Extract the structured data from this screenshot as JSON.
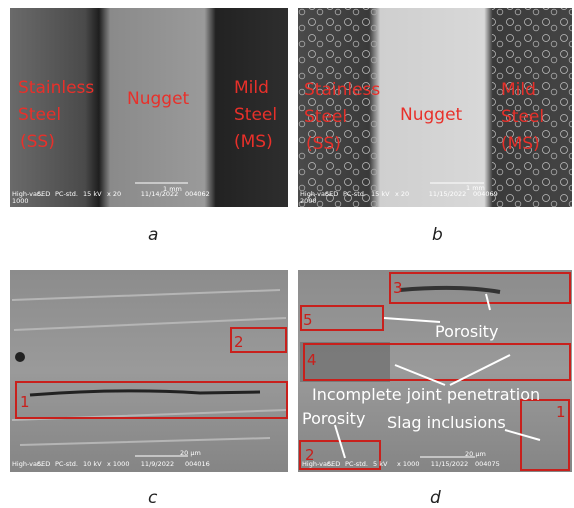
{
  "panels": [
    {
      "caption": "a",
      "labels": [
        "Stainless",
        "Steel",
        "(SS)",
        "Nugget",
        "Mild",
        "Steel",
        "(MS)"
      ],
      "footer": [
        "High-vac.",
        "SED",
        "PC-std.",
        "15 kV",
        "x 20",
        "11/14/2022",
        "004062",
        "1000"
      ],
      "scale": "1 mm"
    },
    {
      "caption": "b",
      "labels": [
        "Stainless",
        "Steel",
        "(SS)",
        "Nugget",
        "Mild",
        "Steel",
        "(MS)"
      ],
      "footer": [
        "High-vac.",
        "SED",
        "PC-std.",
        "15 kV",
        "x 20",
        "11/15/2022",
        "004069",
        "2000"
      ],
      "scale": "1 mm"
    },
    {
      "caption": "c",
      "labels": [
        "1",
        "2"
      ],
      "footer": [
        "High-vac.",
        "SED",
        "PC-std.",
        "10 kV",
        "x 1000",
        "11/9/2022",
        "004016"
      ],
      "scale": "20 µm"
    },
    {
      "caption": "d",
      "labels": [
        "3",
        "5",
        "4",
        "2",
        "1",
        "Porosity",
        "Incomplete joint penetration",
        "Porosity",
        "Slag inclusions"
      ],
      "footer": [
        "High-vac.",
        "SED",
        "PC-std.",
        "5 kV",
        "x 1000",
        "11/15/2022",
        "004075"
      ],
      "scale": "20 µm"
    }
  ]
}
